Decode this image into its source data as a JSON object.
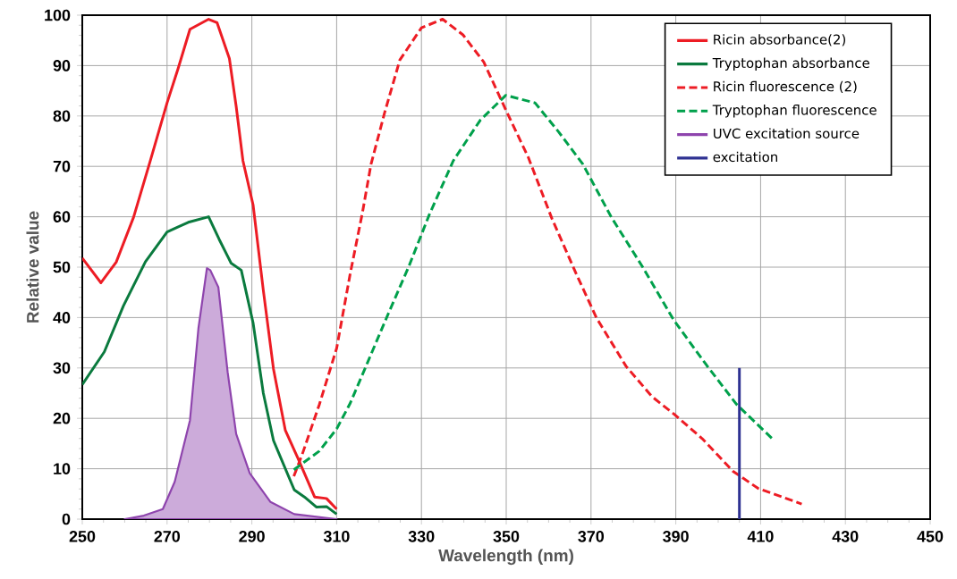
{
  "chart_data": {
    "type": "line",
    "xlabel": "Wavelength (nm)",
    "ylabel": "Relative value",
    "xlim": [
      250,
      450
    ],
    "ylim": [
      0,
      100
    ],
    "xticks": [
      250,
      270,
      290,
      310,
      330,
      350,
      370,
      390,
      410,
      430,
      450
    ],
    "yticks": [
      0,
      10,
      20,
      30,
      40,
      50,
      60,
      70,
      80,
      90,
      100
    ],
    "grid": true,
    "legend": "top right",
    "series": [
      {
        "name": "Ricin absorbance(2)",
        "color": "#ed1c24",
        "line_style": "solid",
        "x": [
          250,
          254.4,
          258,
          262.1,
          266,
          270,
          272.6,
          275.4,
          279.8,
          281.8,
          284.7,
          286.3,
          287.9,
          290.3,
          292.7,
          295.1,
          297.9,
          300.8,
          304.8,
          307.6,
          310
        ],
        "values": [
          51.8,
          46.9,
          51,
          59.9,
          71,
          82.6,
          89.4,
          97.2,
          99.2,
          98.5,
          91.4,
          81.9,
          71.1,
          62.3,
          45.4,
          29.8,
          17.6,
          12.2,
          4.4,
          4.1,
          2.0
        ]
      },
      {
        "name": "Tryptophan absorbance",
        "color": "#0a7a3e",
        "line_style": "solid",
        "x": [
          250,
          255.2,
          259.7,
          264.9,
          270,
          275,
          279.8,
          282.3,
          285.1,
          287.5,
          290.3,
          292.7,
          295.1,
          300,
          302.4,
          305.2,
          307.6,
          310
        ],
        "values": [
          26.7,
          33.2,
          42.3,
          51.1,
          57,
          58.9,
          60,
          55.5,
          50.8,
          49.4,
          38.9,
          25,
          15.6,
          5.8,
          4.4,
          2.4,
          2.5,
          1.0
        ]
      },
      {
        "name": "Ricin fluorescence (2)",
        "color": "#ed1c24",
        "line_style": "dashed",
        "x": [
          299.9,
          301.9,
          305.9,
          310,
          313.2,
          316.1,
          318.1,
          321.3,
          324.9,
          330,
          335,
          339.8,
          344.7,
          349.9,
          355.2,
          360.8,
          366.5,
          371.3,
          378.3,
          384.4,
          389.5,
          396.2,
          403.5,
          409.4,
          419.7
        ],
        "values": [
          8.5,
          12.9,
          22.7,
          33.9,
          48.7,
          60.9,
          70.4,
          80.6,
          91.1,
          97.5,
          99.2,
          96.1,
          90.7,
          81.2,
          71.8,
          59.6,
          48.7,
          39.9,
          30.3,
          24.3,
          20.9,
          16,
          9.5,
          6.1,
          3.0
        ]
      },
      {
        "name": "Tryptophan fluorescence",
        "color": "#00a04b",
        "line_style": "dashed",
        "x": [
          299.9,
          305.9,
          310,
          313.2,
          317.3,
          322.1,
          327,
          331.8,
          337.5,
          343.9,
          349.9,
          356.8,
          362.4,
          368.1,
          374.8,
          382.2,
          389.5,
          397.3,
          404.3,
          412.7
        ],
        "values": [
          9.8,
          13.5,
          17.9,
          23,
          31.1,
          40.6,
          50.1,
          60.3,
          71.1,
          79.2,
          84.1,
          82.6,
          76.8,
          70.4,
          59.9,
          50,
          39.5,
          30.5,
          22.8,
          16.0
        ]
      },
      {
        "name": "UVC excitation source",
        "type": "area",
        "color": "#8e44ad",
        "line_style": "solid",
        "x": [
          260,
          264.5,
          269,
          271.8,
          275.4,
          277.4,
          279.4,
          280.2,
          282.1,
          284.3,
          286.3,
          289.5,
          294.4,
          300,
          310
        ],
        "values": [
          0,
          0.7,
          2,
          7.4,
          19.6,
          37.9,
          49.8,
          49.4,
          46,
          29.1,
          16.9,
          9.1,
          3.4,
          1.0,
          0
        ]
      },
      {
        "name": "excitation",
        "color": "#2e3192",
        "line_style": "solid",
        "x": [
          405,
          405
        ],
        "values": [
          0,
          30
        ]
      }
    ]
  }
}
